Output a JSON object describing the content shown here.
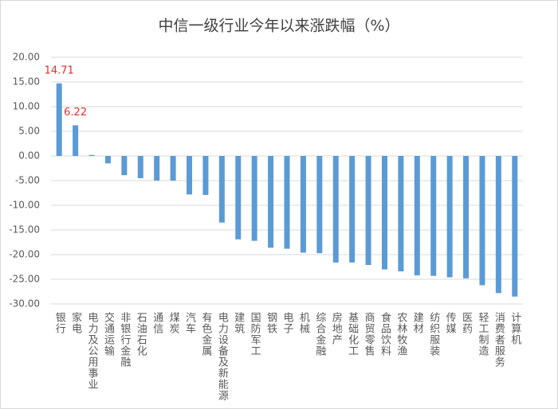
{
  "chart_data": {
    "type": "bar",
    "title": "中信一级行业今年以来涨跌幅（%）",
    "categories": [
      "银行",
      "家电",
      "电力及公用事业",
      "交通运输",
      "非银行金融",
      "石油石化",
      "通信",
      "煤炭",
      "汽车",
      "有色金属",
      "电力设备及新能源",
      "建筑",
      "国防军工",
      "钢铁",
      "电子",
      "机械",
      "综合金融",
      "房地产",
      "基础化工",
      "商贸零售",
      "食品饮料",
      "农林牧渔",
      "建材",
      "纺织服装",
      "传媒",
      "医药",
      "轻工制造",
      "消费者服务",
      "计算机"
    ],
    "values": [
      14.71,
      6.22,
      0.2,
      -1.5,
      -3.9,
      -4.5,
      -5.0,
      -5.0,
      -7.8,
      -7.9,
      -13.5,
      -16.9,
      -17.2,
      -18.6,
      -18.8,
      -19.6,
      -19.7,
      -21.6,
      -21.6,
      -22.1,
      -23.0,
      -23.4,
      -24.2,
      -24.3,
      -24.6,
      -24.8,
      -26.2,
      -27.8,
      -28.5
    ],
    "value_labels": [
      "14.71",
      "6.22",
      null,
      null,
      null,
      null,
      null,
      null,
      null,
      null,
      null,
      null,
      null,
      null,
      null,
      null,
      null,
      null,
      null,
      null,
      null,
      null,
      null,
      null,
      null,
      null,
      null,
      null,
      null
    ],
    "color": "#5b9bd5",
    "label_color": "#e03030",
    "ylim": [
      -30,
      20
    ],
    "yticks": [
      {
        "value": -30,
        "label": "-30.00"
      },
      {
        "value": -25,
        "label": "-25.00"
      },
      {
        "value": -20,
        "label": "-20.00"
      },
      {
        "value": -15,
        "label": "-15.00"
      },
      {
        "value": -10,
        "label": "-10.00"
      },
      {
        "value": -5,
        "label": "-5.00"
      },
      {
        "value": 0,
        "label": "0.00"
      },
      {
        "value": 5,
        "label": "5.00"
      },
      {
        "value": 10,
        "label": "10.00"
      },
      {
        "value": 15,
        "label": "15.00"
      },
      {
        "value": 20,
        "label": "20.00"
      }
    ],
    "grid": true
  }
}
